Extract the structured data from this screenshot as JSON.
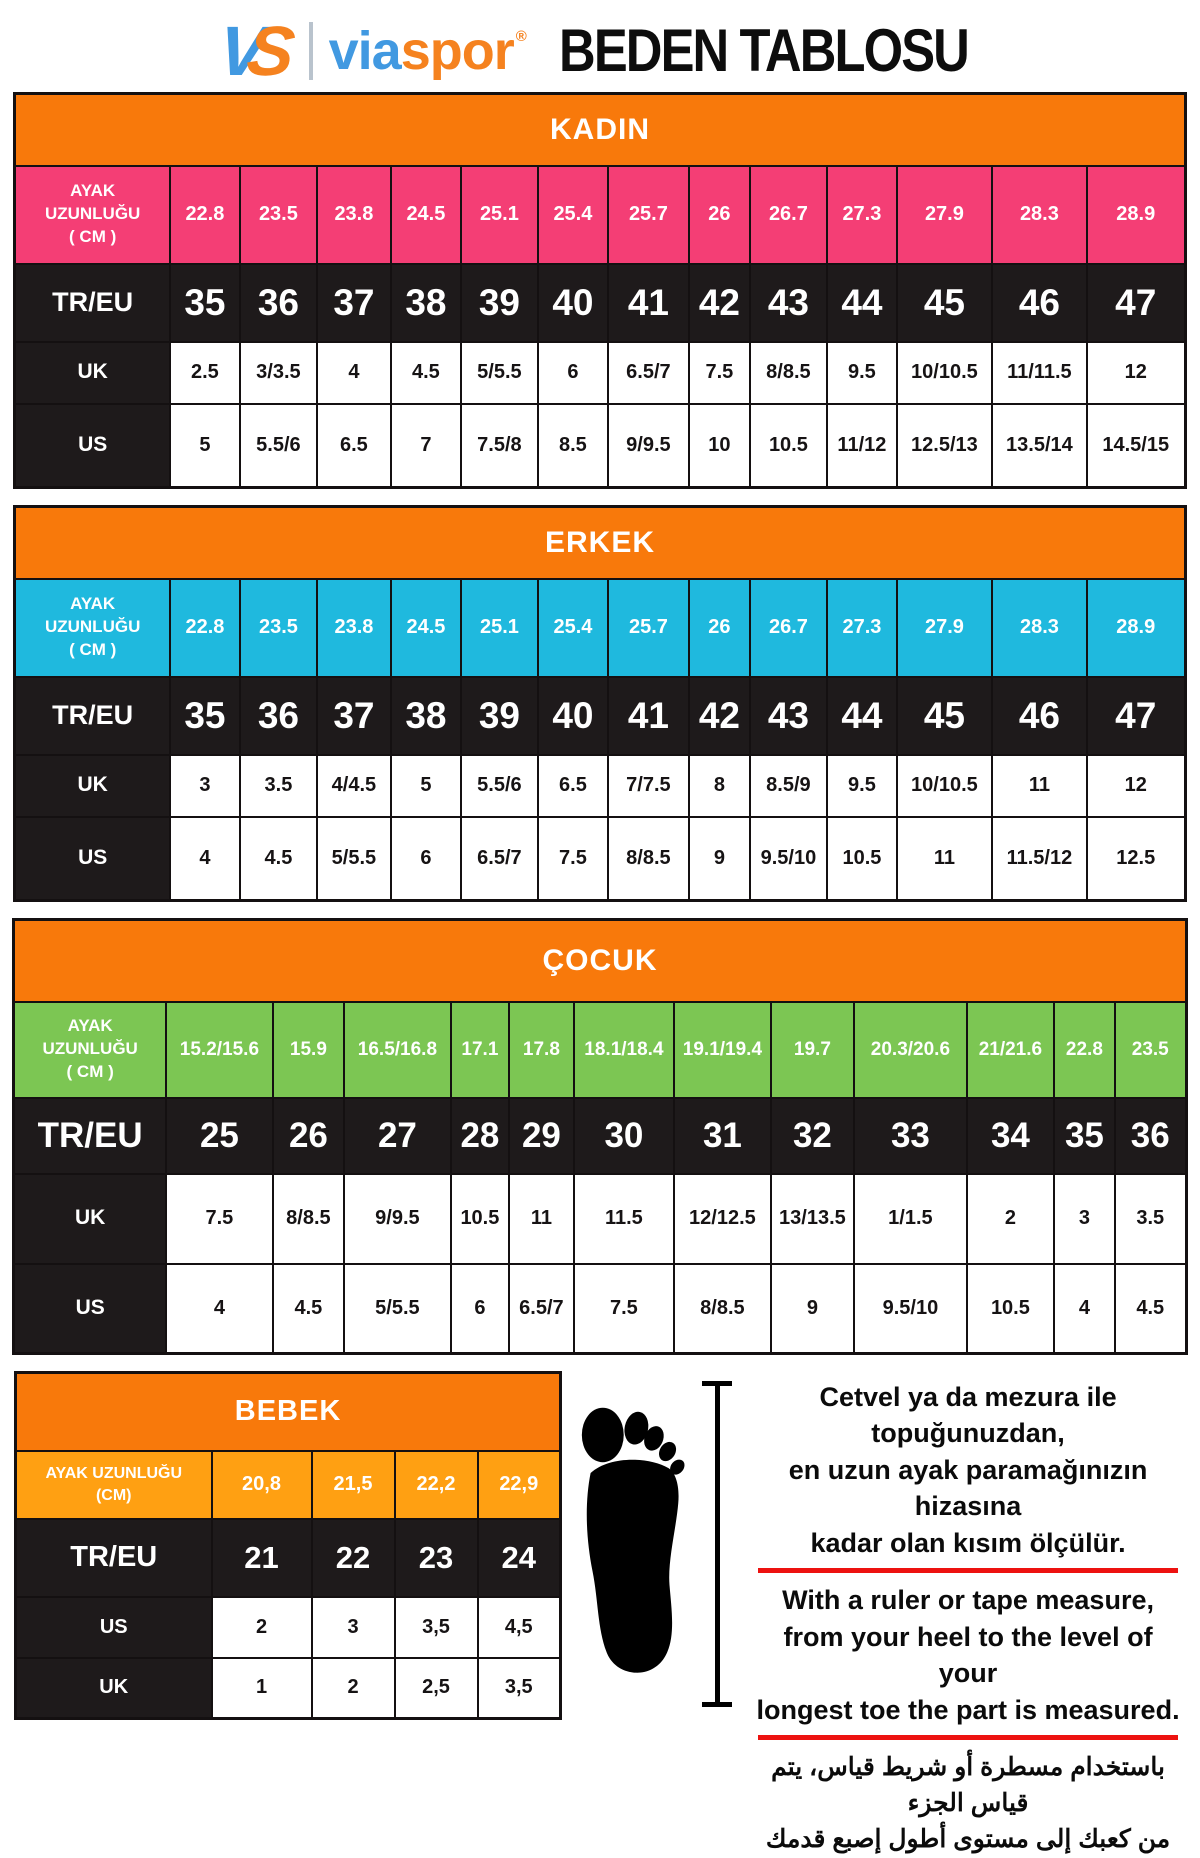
{
  "header": {
    "logo": {
      "v": "V",
      "s": "S",
      "brand_left": "via",
      "brand_right": "spor",
      "registered": "®"
    },
    "title": "BEDEN TABLOSU"
  },
  "labels": {
    "foot_length": "AYAK\nUZUNLUĞU\n( CM )",
    "foot_length_bebek": "AYAK UZUNLUĞU\n(CM)",
    "tr_eu": "TR/EU",
    "uk": "UK",
    "us": "US"
  },
  "colors": {
    "orange": "#F8790B",
    "pink": "#F43E75",
    "cyan": "#1FB9DE",
    "green": "#7CC653",
    "amber": "#FFA012",
    "black": "#1E1A1B",
    "red": "#ED1210",
    "logo_blue": "#4199E1",
    "logo_orange": "#F5821F"
  },
  "tables": {
    "kadin": {
      "title": "KADIN",
      "cm": [
        "22.8",
        "23.5",
        "23.8",
        "24.5",
        "25.1",
        "25.4",
        "25.7",
        "26",
        "26.7",
        "27.3",
        "27.9",
        "28.3",
        "28.9"
      ],
      "tr_eu": [
        "35",
        "36",
        "37",
        "38",
        "39",
        "40",
        "41",
        "42",
        "43",
        "44",
        "45",
        "46",
        "47"
      ],
      "uk": [
        "2.5",
        "3/3.5",
        "4",
        "4.5",
        "5/5.5",
        "6",
        "6.5/7",
        "7.5",
        "8/8.5",
        "9.5",
        "10/10.5",
        "11/11.5",
        "12"
      ],
      "us": [
        "5",
        "5.5/6",
        "6.5",
        "7",
        "7.5/8",
        "8.5",
        "9/9.5",
        "10",
        "10.5",
        "11/12",
        "12.5/13",
        "13.5/14",
        "14.5/15"
      ]
    },
    "erkek": {
      "title": "ERKEK",
      "cm": [
        "22.8",
        "23.5",
        "23.8",
        "24.5",
        "25.1",
        "25.4",
        "25.7",
        "26",
        "26.7",
        "27.3",
        "27.9",
        "28.3",
        "28.9"
      ],
      "tr_eu": [
        "35",
        "36",
        "37",
        "38",
        "39",
        "40",
        "41",
        "42",
        "43",
        "44",
        "45",
        "46",
        "47"
      ],
      "uk": [
        "3",
        "3.5",
        "4/4.5",
        "5",
        "5.5/6",
        "6.5",
        "7/7.5",
        "8",
        "8.5/9",
        "9.5",
        "10/10.5",
        "11",
        "12"
      ],
      "us": [
        "4",
        "4.5",
        "5/5.5",
        "6",
        "6.5/7",
        "7.5",
        "8/8.5",
        "9",
        "9.5/10",
        "10.5",
        "11",
        "11.5/12",
        "12.5"
      ]
    },
    "cocuk": {
      "title": "ÇOCUK",
      "cm": [
        "15.2/15.6",
        "15.9",
        "16.5/16.8",
        "17.1",
        "17.8",
        "18.1/18.4",
        "19.1/19.4",
        "19.7",
        "20.3/20.6",
        "21/21.6",
        "22.8",
        "23.5"
      ],
      "tr_eu": [
        "25",
        "26",
        "27",
        "28",
        "29",
        "30",
        "31",
        "32",
        "33",
        "34",
        "35",
        "36"
      ],
      "uk": [
        "7.5",
        "8/8.5",
        "9/9.5",
        "10.5",
        "11",
        "11.5",
        "12/12.5",
        "13/13.5",
        "1/1.5",
        "2",
        "3",
        "3.5"
      ],
      "us": [
        "4",
        "4.5",
        "5/5.5",
        "6",
        "6.5/7",
        "7.5",
        "8/8.5",
        "9",
        "9.5/10",
        "10.5",
        "4",
        "4.5"
      ]
    },
    "bebek": {
      "title": "BEBEK",
      "cm": [
        "20,8",
        "21,5",
        "22,2",
        "22,9"
      ],
      "tr_eu": [
        "21",
        "22",
        "23",
        "24"
      ],
      "us": [
        "2",
        "3",
        "3,5",
        "4,5"
      ],
      "uk": [
        "1",
        "2",
        "2,5",
        "3,5"
      ]
    }
  },
  "instructions": {
    "turkish": [
      "Cetvel ya da mezura ile topuğunuzdan,",
      "en uzun ayak paramağınızın hizasına",
      "kadar olan kısım ölçülür."
    ],
    "english": [
      "With a ruler or tape measure,",
      "from your heel to the level of your",
      "longest toe the part is measured."
    ],
    "arabic": [
      "باستخدام مسطرة أو شريط قياس، يتم قياس الجزء",
      "من كعبك إلى مستوى أطول إصبع قدمك"
    ]
  }
}
